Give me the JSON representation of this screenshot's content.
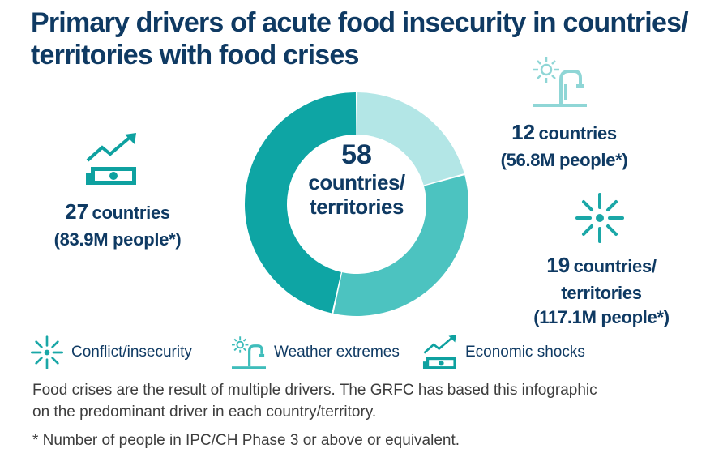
{
  "title": {
    "line1": "Primary drivers of acute food insecurity in countries/",
    "line2": "territories with food crises"
  },
  "center": {
    "number": "58",
    "label1": "countries/",
    "label2": "territories"
  },
  "callouts": {
    "economic": {
      "count": "27",
      "unit": "countries",
      "people": "(83.9M people*)"
    },
    "weather": {
      "count": "12",
      "unit": "countries",
      "people": "(56.8M people*)"
    },
    "conflict": {
      "count": "19",
      "unit_line1": "countries/",
      "unit_line2": "territories",
      "people": "(117.1M people*)"
    }
  },
  "legend": [
    {
      "label": "Conflict/insecurity",
      "icon": "conflict-burst-icon",
      "color": "#1aa7a7"
    },
    {
      "label": "Weather extremes",
      "icon": "sun-and-tap-icon",
      "color": "#4fc6c4"
    },
    {
      "label": "Economic shocks",
      "icon": "money-trend-up-icon",
      "color": "#0ea1a0"
    }
  ],
  "footnote": {
    "line1": "Food crises are the result of multiple drivers. The GRFC has based this infographic",
    "line2": "on the predominant driver in each country/territory.",
    "line3": "* Number of people in IPC/CH Phase 3 or above or equivalent."
  },
  "chart_data": {
    "type": "pie",
    "title": "Primary drivers of acute food insecurity in countries/territories with food crises",
    "total": 58,
    "center_label": "58 countries/territories",
    "series": [
      {
        "name": "Weather extremes",
        "value": 12,
        "people_millions": 56.8,
        "color": "#b3e6e6"
      },
      {
        "name": "Conflict/insecurity",
        "value": 19,
        "people_millions": 117.1,
        "color": "#4cc3c0"
      },
      {
        "name": "Economic shocks",
        "value": 27,
        "people_millions": 83.9,
        "color": "#0ea5a4"
      }
    ]
  }
}
